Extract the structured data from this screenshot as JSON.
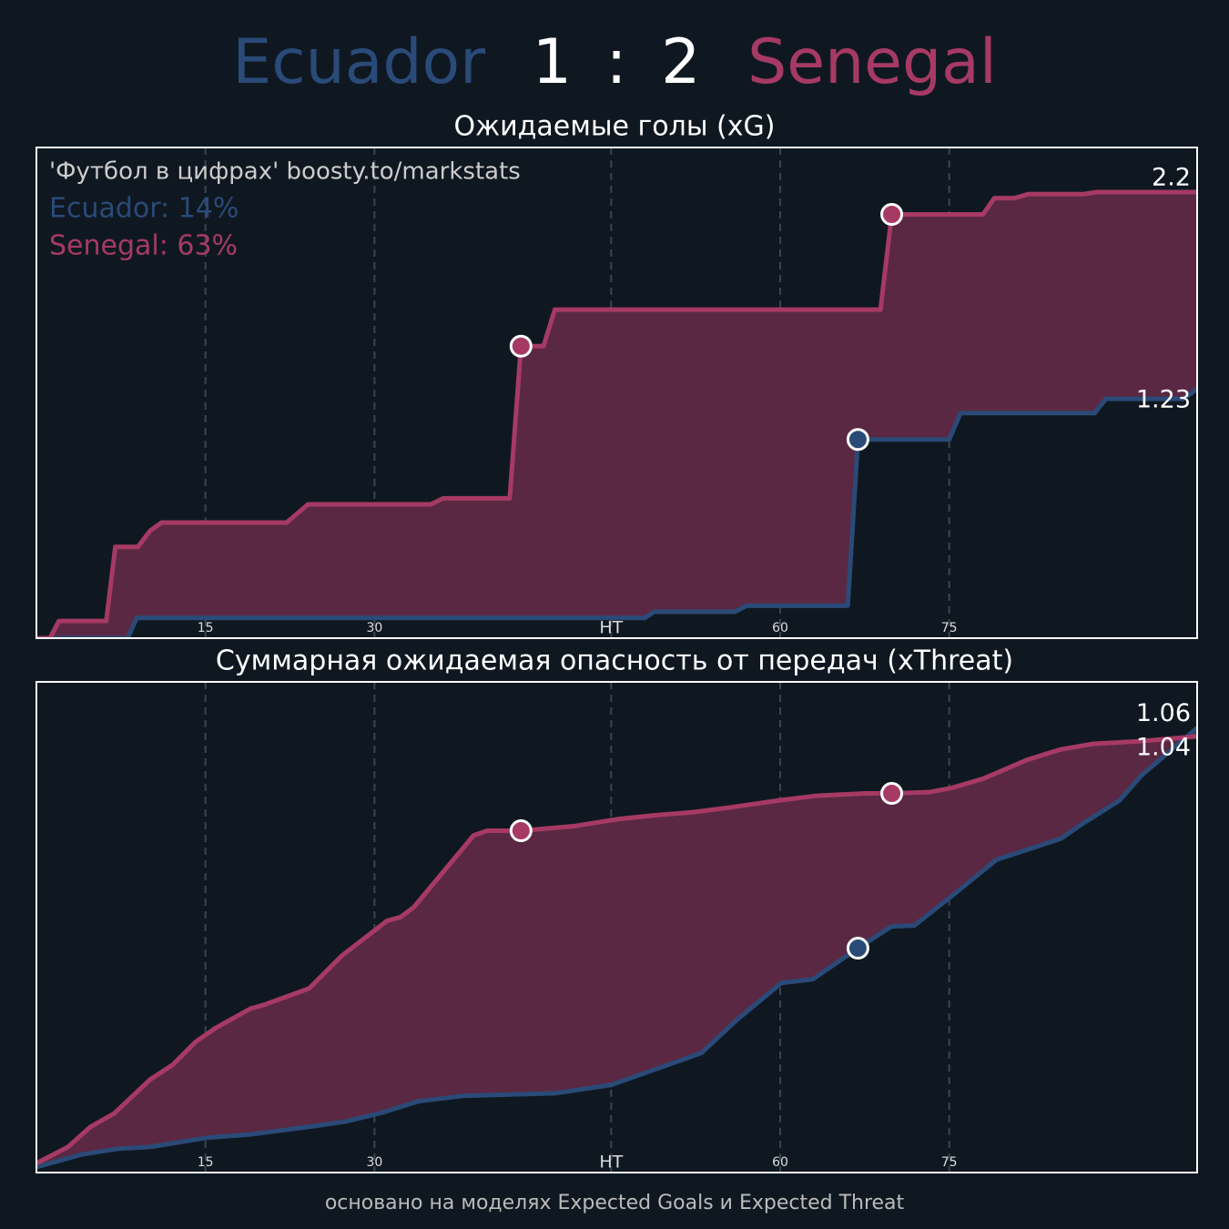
{
  "header": {
    "home": "Ecuador",
    "home_goals": 1,
    "separator": ":",
    "away_goals": 2,
    "away": "Senegal",
    "home_color": "#2a4a78",
    "away_color": "#a63a64"
  },
  "footer": "основано на моделях Expected Goals и Expected Threat",
  "chart_data": [
    {
      "type": "line",
      "title": "Ожидаемые голы (xG)",
      "annotations": [
        {
          "text": "'Футбол в цифрах' boosty.to/markstats",
          "color": "#cccccc"
        },
        {
          "text": "Ecuador: 14%",
          "color": "#2a4a78"
        },
        {
          "text": "Senegal: 63%",
          "color": "#a63a64"
        }
      ],
      "xlim": [
        0,
        103
      ],
      "ylim": [
        0,
        2.42
      ],
      "xticks": [
        15,
        30,
        {
          "value": 51,
          "label": "HT"
        },
        {
          "value": 66,
          "label": "60"
        },
        {
          "value": 81,
          "label": "75"
        }
      ],
      "grid": true,
      "fill_color": "#5a2843",
      "series": [
        {
          "color": "#2a4a78",
          "x": [
            0,
            8.1,
            8.9,
            54,
            54.8,
            62,
            63,
            72,
            72.9,
            81,
            82,
            93.9,
            94.9,
            101.8,
            103
          ],
          "values": [
            0,
            0,
            0.1,
            0.1,
            0.13,
            0.13,
            0.16,
            0.16,
            0.98,
            0.98,
            1.11,
            1.11,
            1.18,
            1.18,
            1.23
          ],
          "goal_x": [
            72.9
          ],
          "goal_values": [
            0.98
          ]
        },
        {
          "color": "#a63a64",
          "x": [
            0,
            1.2,
            2.0,
            6.2,
            7.0,
            9.0,
            10.1,
            11.1,
            22.2,
            24.1,
            35.0,
            36.1,
            42.0,
            43.0,
            45.0,
            46.0,
            74.9,
            75.9,
            84.0,
            85.0,
            86.8,
            88.0,
            92.9,
            94.1,
            103
          ],
          "values": [
            0,
            0,
            0.085,
            0.085,
            0.45,
            0.45,
            0.53,
            0.57,
            0.57,
            0.66,
            0.66,
            0.69,
            0.69,
            1.44,
            1.44,
            1.62,
            1.62,
            2.09,
            2.09,
            2.17,
            2.17,
            2.19,
            2.19,
            2.2,
            2.2
          ],
          "goal_x": [
            43.0,
            75.9
          ],
          "goal_values": [
            1.44,
            2.09
          ]
        }
      ]
    },
    {
      "type": "line",
      "title": "Суммарная ожидаемая опасность от передач (xThreat)",
      "xlim": [
        0,
        103
      ],
      "ylim": [
        0,
        1.17
      ],
      "xticks": [
        15,
        30,
        {
          "value": 51,
          "label": "HT"
        },
        {
          "value": 66,
          "label": "60"
        },
        {
          "value": 81,
          "label": "75"
        }
      ],
      "grid": true,
      "fill_color": "#5a2843",
      "series": [
        {
          "color": "#2a4a78",
          "x": [
            0,
            4.0,
            7.3,
            10.1,
            15.1,
            19.0,
            24.2,
            27.5,
            30.7,
            33.9,
            37.9,
            46.0,
            51.0,
            54.9,
            59.0,
            62.2,
            66.1,
            68.9,
            72.9,
            75.9,
            77.9,
            81.2,
            85.2,
            90.9,
            92.9,
            96.1,
            98.1,
            103
          ],
          "values": [
            0.013,
            0.043,
            0.057,
            0.061,
            0.083,
            0.091,
            0.109,
            0.122,
            0.143,
            0.17,
            0.183,
            0.189,
            0.209,
            0.246,
            0.285,
            0.365,
            0.452,
            0.461,
            0.535,
            0.587,
            0.589,
            0.659,
            0.746,
            0.796,
            0.833,
            0.887,
            0.948,
            1.06
          ],
          "goal_x": [
            72.9
          ],
          "goal_values": [
            0.535
          ]
        },
        {
          "color": "#a63a64",
          "x": [
            0,
            2.8,
            4.8,
            6.9,
            10.1,
            12.1,
            14.1,
            15.8,
            19.0,
            20.2,
            24.2,
            27.1,
            31.1,
            32.3,
            33.5,
            38.8,
            40.0,
            43.0,
            47.7,
            51.7,
            54.9,
            58.2,
            61.4,
            65.8,
            69.1,
            73.5,
            75.9,
            79.2,
            81.2,
            84.0,
            88.0,
            90.9,
            93.7,
            97.7,
            103
          ],
          "values": [
            0.022,
            0.061,
            0.109,
            0.141,
            0.222,
            0.257,
            0.311,
            0.343,
            0.391,
            0.4,
            0.439,
            0.517,
            0.6,
            0.609,
            0.633,
            0.804,
            0.815,
            0.815,
            0.826,
            0.843,
            0.852,
            0.859,
            0.87,
            0.887,
            0.898,
            0.904,
            0.904,
            0.907,
            0.917,
            0.939,
            0.985,
            1.009,
            1.022,
            1.028,
            1.04
          ],
          "goal_x": [
            43.0,
            75.9
          ],
          "goal_values": [
            0.815,
            0.904
          ]
        }
      ]
    }
  ]
}
